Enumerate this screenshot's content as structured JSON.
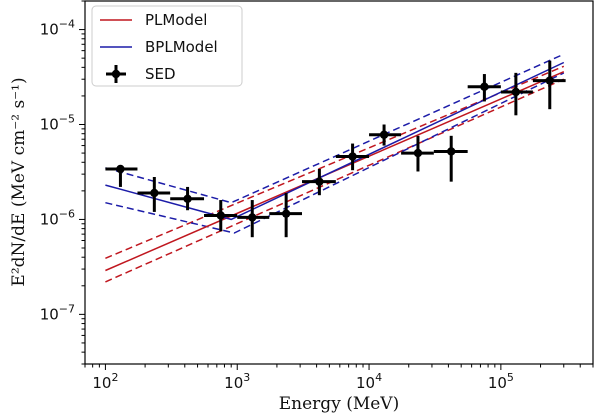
{
  "chart_data": {
    "type": "line",
    "xlabel": "Energy (MeV)",
    "ylabel": "E²dN/dE (MeV cm⁻² s⁻¹)",
    "x_scale": "log",
    "y_scale": "log",
    "xlim": [
      70,
      500000
    ],
    "ylim": [
      3e-08,
      0.0002
    ],
    "x_ticks": [
      {
        "value": 100,
        "base": "10",
        "exp": "2"
      },
      {
        "value": 1000,
        "base": "10",
        "exp": "3"
      },
      {
        "value": 10000,
        "base": "10",
        "exp": "4"
      },
      {
        "value": 100000,
        "base": "10",
        "exp": "5"
      }
    ],
    "y_ticks": [
      {
        "value": 1e-07,
        "base": "10",
        "exp": "−7"
      },
      {
        "value": 1e-06,
        "base": "10",
        "exp": "−6"
      },
      {
        "value": 1e-05,
        "base": "10",
        "exp": "−5"
      },
      {
        "value": 0.0001,
        "base": "10",
        "exp": "−4"
      }
    ],
    "legend": {
      "placement": "top-left",
      "entries": [
        {
          "label": "PLModel",
          "color": "#c0171f",
          "kind": "line"
        },
        {
          "label": "BPLModel",
          "color": "#1c1ca8",
          "kind": "line"
        },
        {
          "label": "SED",
          "color": "#000000",
          "kind": "errorbar"
        }
      ]
    },
    "series": [
      {
        "name": "PLModel",
        "color": "#c0171f",
        "x": [
          100,
          300000
        ],
        "y": [
          2.9e-07,
          3.6e-05
        ],
        "band_upper": [
          3.9e-07,
          4.1e-05
        ],
        "band_lower": [
          2.2e-07,
          3e-05
        ]
      },
      {
        "name": "BPLModel",
        "color": "#1c1ca8",
        "x": [
          100,
          900,
          300000
        ],
        "y": [
          2.3e-06,
          1e-06,
          4.5e-05
        ],
        "band_upper_x": [
          100,
          900,
          300000
        ],
        "band_upper": [
          3.5e-06,
          1.5e-06,
          5.5e-05
        ],
        "band_lower_x": [
          100,
          950,
          300000
        ],
        "band_lower": [
          1.5e-06,
          7.2e-07,
          3.5e-05
        ]
      },
      {
        "name": "SED",
        "color": "#000000",
        "points": [
          {
            "x": 130,
            "y": 3.4e-06,
            "xlo": 100,
            "xhi": 175,
            "ylo": 2.2e-06,
            "yhi": 3.4e-06
          },
          {
            "x": 235,
            "y": 1.9e-06,
            "xlo": 175,
            "xhi": 310,
            "ylo": 1.2e-06,
            "yhi": 2.8e-06
          },
          {
            "x": 420,
            "y": 1.65e-06,
            "xlo": 310,
            "xhi": 560,
            "ylo": 1.25e-06,
            "yhi": 2.2e-06
          },
          {
            "x": 750,
            "y": 1.1e-06,
            "xlo": 560,
            "xhi": 1000,
            "ylo": 7.5e-07,
            "yhi": 1.6e-06
          },
          {
            "x": 1300,
            "y": 1.05e-06,
            "xlo": 1000,
            "xhi": 1750,
            "ylo": 6.5e-07,
            "yhi": 1.6e-06
          },
          {
            "x": 2350,
            "y": 1.15e-06,
            "xlo": 1750,
            "xhi": 3100,
            "ylo": 6.5e-07,
            "yhi": 1.9e-06
          },
          {
            "x": 4200,
            "y": 2.5e-06,
            "xlo": 3100,
            "xhi": 5600,
            "ylo": 1.8e-06,
            "yhi": 3.4e-06
          },
          {
            "x": 7500,
            "y": 4.6e-06,
            "xlo": 5600,
            "xhi": 10000,
            "ylo": 3.3e-06,
            "yhi": 6.3e-06
          },
          {
            "x": 13000,
            "y": 7.8e-06,
            "xlo": 10000,
            "xhi": 17500,
            "ylo": 6e-06,
            "yhi": 1e-05
          },
          {
            "x": 23500,
            "y": 5e-06,
            "xlo": 17500,
            "xhi": 31000,
            "ylo": 3.2e-06,
            "yhi": 7.6e-06
          },
          {
            "x": 42000,
            "y": 5.2e-06,
            "xlo": 31000,
            "xhi": 56000,
            "ylo": 2.5e-06,
            "yhi": 7.6e-06
          },
          {
            "x": 75000,
            "y": 2.5e-05,
            "xlo": 56000,
            "xhi": 100000,
            "ylo": 1.75e-05,
            "yhi": 3.4e-05
          },
          {
            "x": 130000,
            "y": 2.2e-05,
            "xlo": 100000,
            "xhi": 175000,
            "ylo": 1.25e-05,
            "yhi": 3.5e-05
          },
          {
            "x": 235000,
            "y": 2.9e-05,
            "xlo": 175000,
            "xhi": 310000,
            "ylo": 1.45e-05,
            "yhi": 4.7e-05
          }
        ]
      }
    ]
  }
}
